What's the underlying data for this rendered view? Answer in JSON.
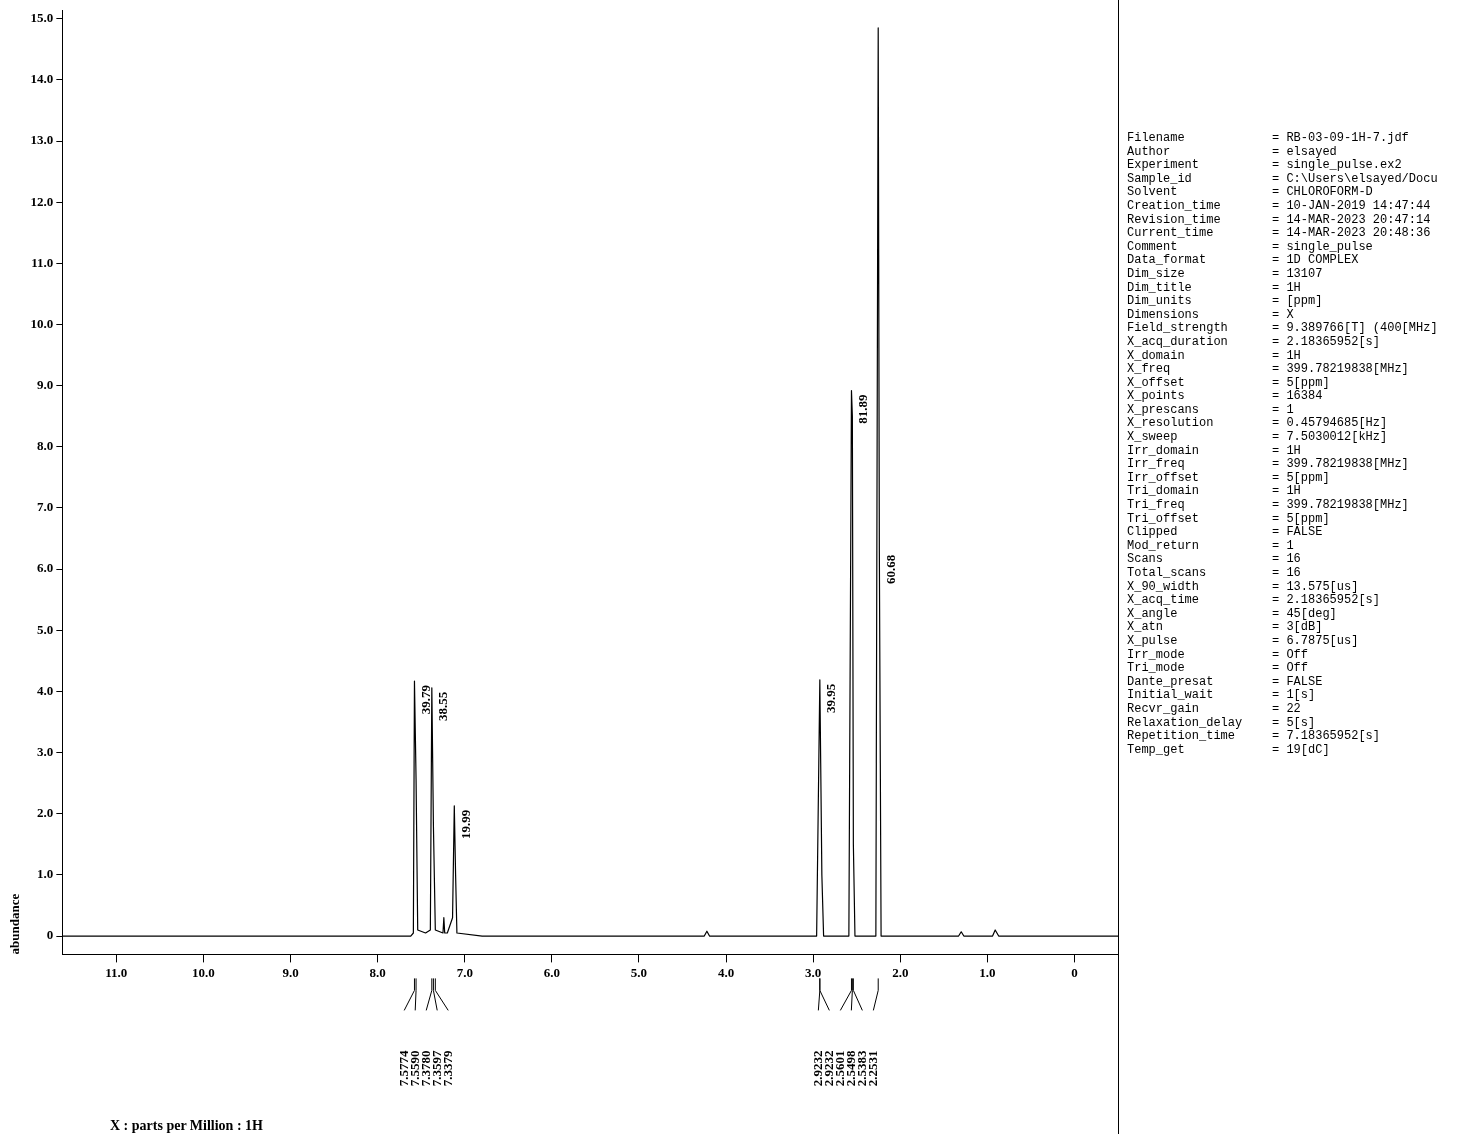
{
  "chart_data": {
    "type": "line",
    "ylabel": "abundance",
    "xlim": [
      11.62,
      -0.5
    ],
    "ylim": [
      -0.3,
      15.13
    ],
    "xticks": [
      {
        "value": 11,
        "label": "11.0"
      },
      {
        "value": 10,
        "label": "10.0"
      },
      {
        "value": 9,
        "label": "9.0"
      },
      {
        "value": 8,
        "label": "8.0"
      },
      {
        "value": 7,
        "label": "7.0"
      },
      {
        "value": 6,
        "label": "6.0"
      },
      {
        "value": 5,
        "label": "5.0"
      },
      {
        "value": 4,
        "label": "4.0"
      },
      {
        "value": 3,
        "label": "3.0"
      },
      {
        "value": 2,
        "label": "2.0"
      },
      {
        "value": 1,
        "label": "1.0"
      },
      0
    ],
    "yticks": [
      0,
      {
        "value": 1,
        "label": "1.0"
      },
      {
        "value": 2,
        "label": "2.0"
      },
      {
        "value": 3,
        "label": "3.0"
      },
      {
        "value": 4,
        "label": "4.0"
      },
      {
        "value": 5,
        "label": "5.0"
      },
      {
        "value": 6,
        "label": "6.0"
      },
      {
        "value": 7,
        "label": "7.0"
      },
      {
        "value": 8,
        "label": "8.0"
      },
      {
        "value": 9,
        "label": "9.0"
      },
      {
        "value": 10,
        "label": "10.0"
      },
      {
        "value": 11,
        "label": "11.0"
      },
      {
        "value": 12,
        "label": "12.0"
      },
      {
        "value": 13,
        "label": "13.0"
      },
      {
        "value": 14,
        "label": "14.0"
      },
      {
        "value": 15,
        "label": "15.0"
      }
    ],
    "grid": false,
    "legend": false,
    "marker": "none",
    "line_style": "solid",
    "series": [
      {
        "color": "#000000",
        "x": [
          11.62,
          8.2,
          7.62,
          7.59,
          7.5774,
          7.559,
          7.54,
          7.45,
          7.395,
          7.378,
          7.3597,
          7.3379,
          7.25,
          7.24,
          7.23,
          7.2,
          7.14,
          7.12,
          7.105,
          7.09,
          6.8,
          4.25,
          4.22,
          4.19,
          2.96,
          2.9232,
          2.9,
          2.88,
          2.59,
          2.5601,
          2.5498,
          2.5383,
          2.52,
          2.28,
          2.2531,
          2.24,
          2.22,
          1.33,
          1.3,
          1.27,
          0.94,
          0.91,
          0.87,
          -0.5
        ],
        "values": [
          0,
          0,
          0,
          0.05,
          4.17,
          2.57,
          0.1,
          0.05,
          0.1,
          4.06,
          1.8,
          0.1,
          0.05,
          0.3,
          0.05,
          0.05,
          0.3,
          2.13,
          1.0,
          0.05,
          0,
          0,
          0.08,
          0,
          0,
          4.19,
          1.0,
          0,
          0,
          8.92,
          8.5,
          1.5,
          0,
          0,
          14.85,
          6.3,
          0,
          0,
          0.07,
          0,
          0,
          0.1,
          0,
          0
        ]
      }
    ],
    "annotations": [
      {
        "text": "39.79",
        "x": 7.5774,
        "y": 4.17
      },
      {
        "text": "38.55",
        "x": 7.378,
        "y": 4.06
      },
      {
        "text": "19.99",
        "x": 7.12,
        "y": 2.13
      },
      {
        "text": "39.95",
        "x": 2.9232,
        "y": 4.19
      },
      {
        "text": "81.89",
        "x": 2.5601,
        "y": 8.92
      },
      {
        "text": "60.68",
        "x": 2.24,
        "y": 6.3
      },
      "7.5774",
      "7.5590",
      "7.3780",
      "7.3597",
      "7.3379",
      "2.9232",
      "2.9232",
      "2.5601",
      "2.5498",
      "2.5383",
      "2.2531",
      "X : parts per Million : 1H",
      "Filename = RB-03-09-1H-7.jdf",
      "Author = elsayed",
      "Experiment = single_pulse.ex2",
      "Sample_id = C:\\Users\\elsayed/Docu",
      "Solvent = CHLOROFORM-D",
      "Creation_time = 10-JAN-2019 14:47:44",
      "Revision_time = 14-MAR-2023 20:47:14",
      "Current_time = 14-MAR-2023 20:48:36",
      "Comment = single_pulse",
      "Data_format = 1D COMPLEX",
      "Dim_size = 13107",
      "Dim_title = 1H",
      "Dim_units = [ppm]",
      "Dimensions = X",
      "Field_strength = 9.389766[T] (400[MHz]",
      "X_acq_duration = 2.18365952[s]",
      "X_domain = 1H",
      "X_freq = 399.78219838[MHz]",
      "X_offset = 5[ppm]",
      "X_points = 16384",
      "X_prescans = 1",
      "X_resolution = 0.45794685[Hz]",
      "X_sweep = 7.5030012[kHz]",
      "Irr_domain = 1H",
      "Irr_freq = 399.78219838[MHz]",
      "Irr_offset = 5[ppm]",
      "Tri_domain = 1H",
      "Tri_freq = 399.78219838[MHz]",
      "Tri_offset = 5[ppm]",
      "Clipped = FALSE",
      "Mod_return = 1",
      "Scans = 16",
      "Total_scans = 16",
      "X_90_width = 13.575[us]",
      "X_acq_time = 2.18365952[s]",
      "X_angle = 45[deg]",
      "X_atn = 3[dB]",
      "X_pulse = 6.7875[us]",
      "Irr_mode = Off",
      "Tri_mode = Off",
      "Dante_presat = FALSE",
      "Initial_wait = 1[s]",
      "Recvr_gain = 22",
      "Relaxation_delay = 5[s]",
      "Repetition_time = 7.18365952[s]",
      "Temp_get = 19[dC]"
    ]
  }
}
